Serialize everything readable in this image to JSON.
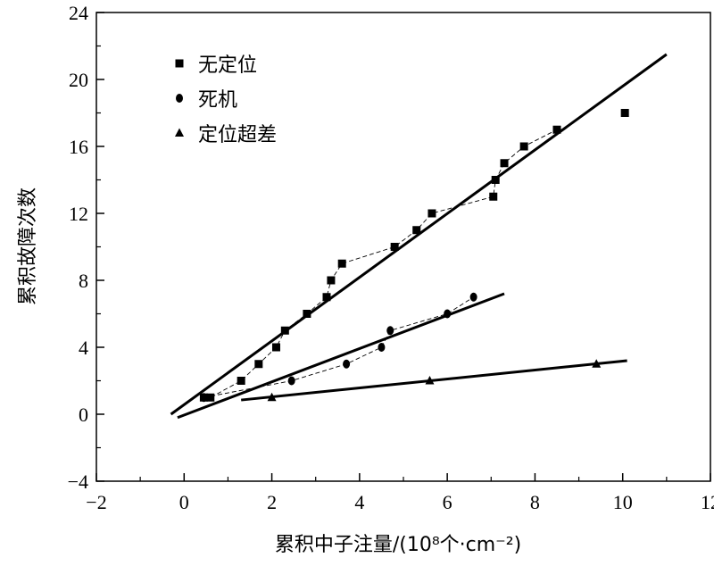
{
  "chart_data": {
    "type": "scatter",
    "xlabel": "累积中子注量/(10⁸个·cm⁻²)",
    "ylabel": "累积故障次数",
    "xlim": [
      -2,
      12
    ],
    "ylim": [
      -4,
      24
    ],
    "x_ticks": [
      "−2",
      "0",
      "2",
      "4",
      "6",
      "8",
      "10",
      "12"
    ],
    "y_ticks": [
      "−4",
      "0",
      "4",
      "8",
      "12",
      "16",
      "20",
      "24"
    ],
    "grid": false,
    "legend_position": "top-left",
    "series": [
      {
        "name": "无定位",
        "marker": "square",
        "x": [
          0.45,
          0.6,
          1.3,
          1.7,
          2.1,
          2.3,
          2.8,
          3.25,
          3.35,
          3.6,
          4.8,
          5.3,
          5.65,
          7.05,
          7.1,
          7.3,
          7.75,
          8.5,
          10.05
        ],
        "y": [
          1,
          1,
          2,
          3,
          4,
          5,
          6,
          7,
          8,
          9,
          10,
          11,
          12,
          13,
          14,
          15,
          16,
          17,
          18
        ],
        "connect_until_index": 17,
        "fit_line": {
          "x": [
            -0.3,
            11.0
          ],
          "y": [
            0.0,
            21.5
          ]
        }
      },
      {
        "name": "死机",
        "marker": "circle",
        "x": [
          0.45,
          2.45,
          3.7,
          4.5,
          4.7,
          6.0,
          6.6
        ],
        "y": [
          1,
          2,
          3,
          4,
          5,
          6,
          7
        ],
        "connect_until_index": 6,
        "fit_line": {
          "x": [
            -0.15,
            7.3
          ],
          "y": [
            -0.2,
            7.2
          ]
        }
      },
      {
        "name": "定位超差",
        "marker": "triangle",
        "x": [
          2.0,
          5.6,
          9.4
        ],
        "y": [
          1,
          2,
          3
        ],
        "connect_until_index": -1,
        "fit_line": {
          "x": [
            1.3,
            10.1
          ],
          "y": [
            0.85,
            3.2
          ]
        }
      }
    ]
  }
}
